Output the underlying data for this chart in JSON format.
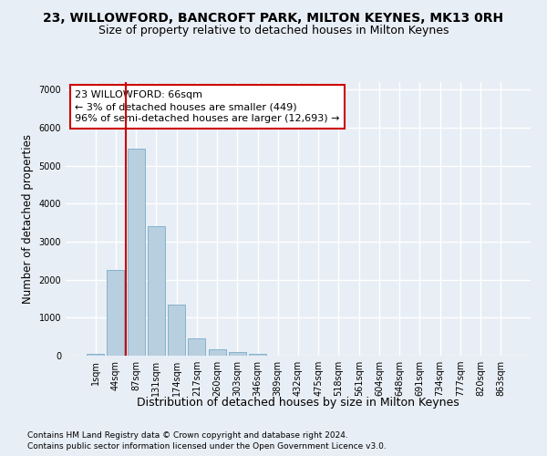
{
  "title": "23, WILLOWFORD, BANCROFT PARK, MILTON KEYNES, MK13 0RH",
  "subtitle": "Size of property relative to detached houses in Milton Keynes",
  "xlabel": "Distribution of detached houses by size in Milton Keynes",
  "ylabel": "Number of detached properties",
  "footnote1": "Contains HM Land Registry data © Crown copyright and database right 2024.",
  "footnote2": "Contains public sector information licensed under the Open Government Licence v3.0.",
  "bar_labels": [
    "1sqm",
    "44sqm",
    "87sqm",
    "131sqm",
    "174sqm",
    "217sqm",
    "260sqm",
    "303sqm",
    "346sqm",
    "389sqm",
    "432sqm",
    "475sqm",
    "518sqm",
    "561sqm",
    "604sqm",
    "648sqm",
    "691sqm",
    "734sqm",
    "777sqm",
    "820sqm",
    "863sqm"
  ],
  "bar_values": [
    50,
    2250,
    5450,
    3400,
    1350,
    450,
    175,
    100,
    50,
    0,
    0,
    0,
    0,
    0,
    0,
    0,
    0,
    0,
    0,
    0,
    0
  ],
  "bar_color": "#b8cfe0",
  "bar_edgecolor": "#7aaac8",
  "vline_x_idx": 1.5,
  "vline_color": "#cc0000",
  "annotation_text": "23 WILLOWFORD: 66sqm\n← 3% of detached houses are smaller (449)\n96% of semi-detached houses are larger (12,693) →",
  "annotation_box_facecolor": "#ffffff",
  "annotation_box_edgecolor": "#cc0000",
  "ylim": [
    0,
    7200
  ],
  "yticks": [
    0,
    1000,
    2000,
    3000,
    4000,
    5000,
    6000,
    7000
  ],
  "bg_color": "#e8eef5",
  "axes_bg_color": "#e8eef5",
  "grid_color": "#ffffff",
  "title_fontsize": 10,
  "subtitle_fontsize": 9,
  "ylabel_fontsize": 8.5,
  "xlabel_fontsize": 9,
  "annotation_fontsize": 8,
  "tick_fontsize": 7,
  "footnote_fontsize": 6.5
}
